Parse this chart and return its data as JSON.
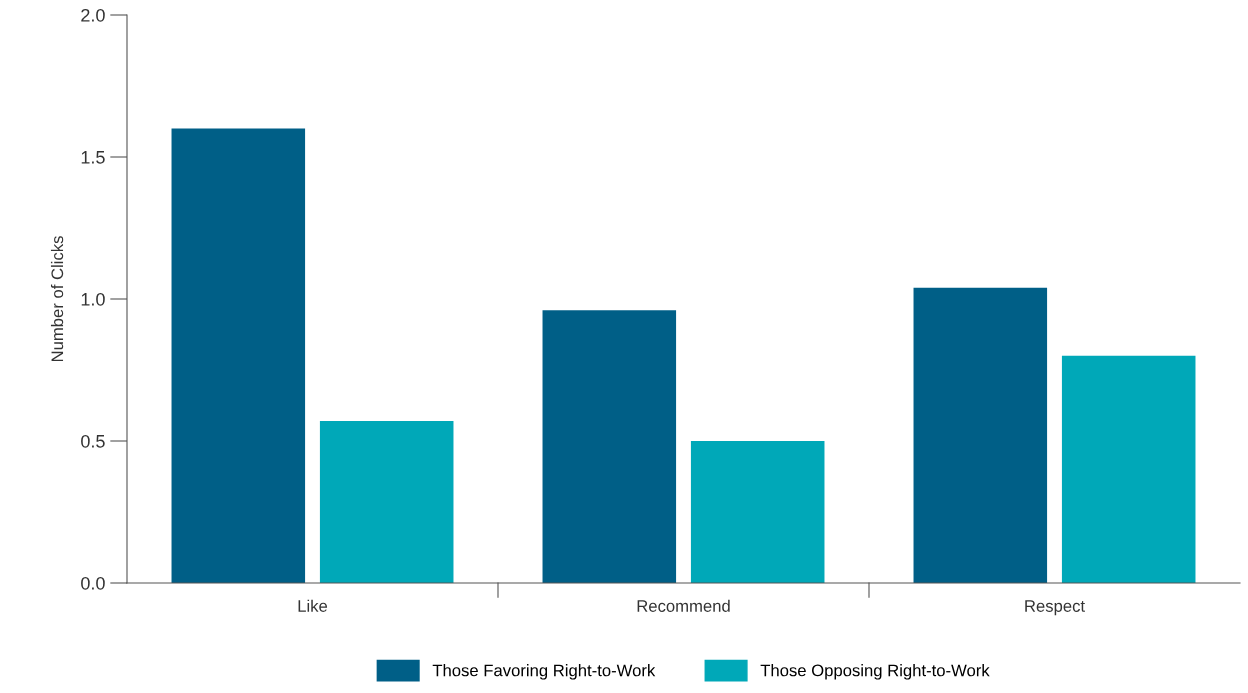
{
  "chart_data": {
    "type": "bar",
    "ylabel": "Number of Clicks",
    "categories": [
      "Like",
      "Recommend",
      "Respect"
    ],
    "series": [
      {
        "name": "Those Favoring Right-to-Work",
        "color": "#005f87",
        "values": [
          1.6,
          0.96,
          1.04
        ]
      },
      {
        "name": "Those Opposing Right-to-Work",
        "color": "#00a8b8",
        "values": [
          0.57,
          0.5,
          0.8
        ]
      }
    ],
    "ylim": [
      0,
      2.0
    ],
    "yticks": [
      {
        "value": 0,
        "label": "0.0"
      },
      {
        "value": 0.5,
        "label": "0.5"
      },
      {
        "value": 1.0,
        "label": "1.0"
      },
      {
        "value": 1.5,
        "label": "1.5"
      },
      {
        "value": 2.0,
        "label": "2.0"
      }
    ],
    "grid": false,
    "legend": "bottom"
  }
}
